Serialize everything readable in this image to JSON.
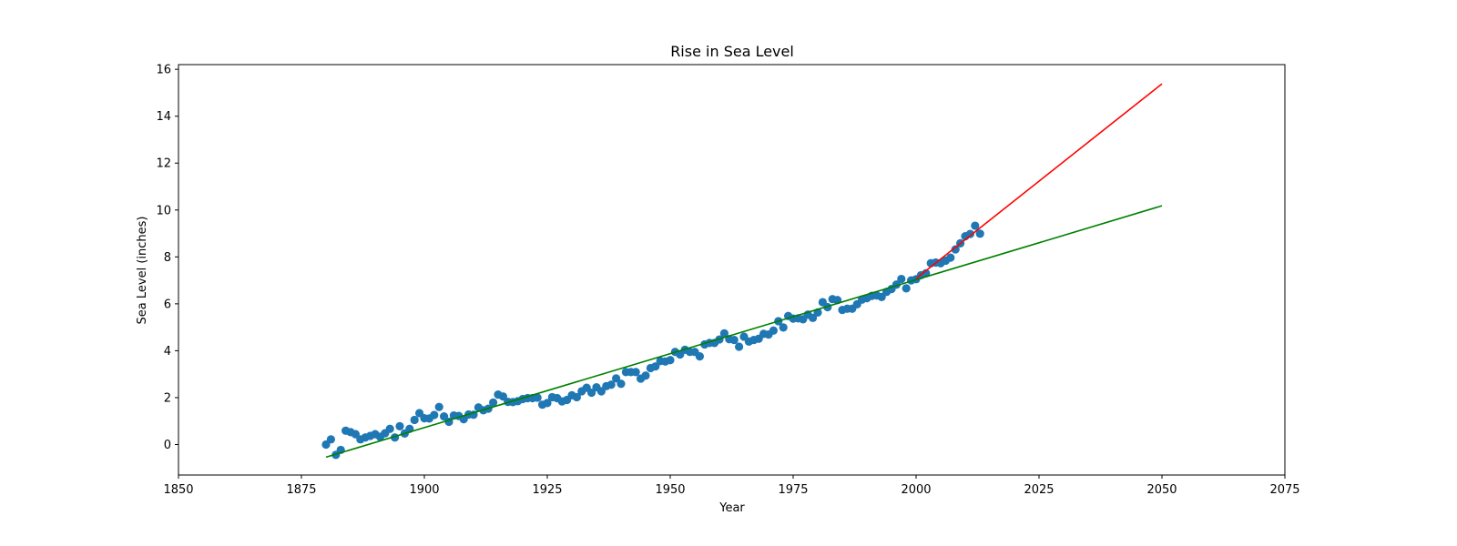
{
  "chart_data": {
    "type": "scatter",
    "title": "Rise in Sea Level",
    "xlabel": "Year",
    "ylabel": "Sea Level (inches)",
    "xlim": [
      1850,
      2075
    ],
    "ylim": [
      -1.3,
      16.2
    ],
    "x_ticks": [
      1850,
      1875,
      1900,
      1925,
      1950,
      1975,
      2000,
      2025,
      2050,
      2075
    ],
    "y_ticks": [
      0,
      2,
      4,
      6,
      8,
      10,
      12,
      14,
      16
    ],
    "grid": false,
    "scatter": {
      "color": "#1f77b4",
      "x": [
        1880,
        1881,
        1882,
        1883,
        1884,
        1885,
        1886,
        1887,
        1888,
        1889,
        1890,
        1891,
        1892,
        1893,
        1894,
        1895,
        1896,
        1897,
        1898,
        1899,
        1900,
        1901,
        1902,
        1903,
        1904,
        1905,
        1906,
        1907,
        1908,
        1909,
        1910,
        1911,
        1912,
        1913,
        1914,
        1915,
        1916,
        1917,
        1918,
        1919,
        1920,
        1921,
        1922,
        1923,
        1924,
        1925,
        1926,
        1927,
        1928,
        1929,
        1930,
        1931,
        1932,
        1933,
        1934,
        1935,
        1936,
        1937,
        1938,
        1939,
        1940,
        1941,
        1942,
        1943,
        1944,
        1945,
        1946,
        1947,
        1948,
        1949,
        1950,
        1951,
        1952,
        1953,
        1954,
        1955,
        1956,
        1957,
        1958,
        1959,
        1960,
        1961,
        1962,
        1963,
        1964,
        1965,
        1966,
        1967,
        1968,
        1969,
        1970,
        1971,
        1972,
        1973,
        1974,
        1975,
        1976,
        1977,
        1978,
        1979,
        1980,
        1981,
        1982,
        1983,
        1984,
        1985,
        1986,
        1987,
        1988,
        1989,
        1990,
        1991,
        1992,
        1993,
        1994,
        1995,
        1996,
        1997,
        1998,
        1999,
        2000,
        2001,
        2002,
        2003,
        2004,
        2005,
        2006,
        2007,
        2008,
        2009,
        2010,
        2011,
        2012,
        2013
      ],
      "y": [
        0.0,
        0.22,
        -0.44,
        -0.23,
        0.59,
        0.53,
        0.44,
        0.22,
        0.3,
        0.37,
        0.44,
        0.33,
        0.48,
        0.67,
        0.3,
        0.78,
        0.47,
        0.67,
        1.05,
        1.34,
        1.12,
        1.11,
        1.26,
        1.6,
        1.2,
        0.97,
        1.24,
        1.22,
        1.08,
        1.28,
        1.27,
        1.58,
        1.46,
        1.53,
        1.79,
        2.13,
        2.05,
        1.82,
        1.81,
        1.85,
        1.94,
        1.98,
        1.98,
        2.0,
        1.7,
        1.77,
        2.02,
        1.98,
        1.84,
        1.9,
        2.1,
        2.02,
        2.27,
        2.42,
        2.21,
        2.44,
        2.27,
        2.49,
        2.55,
        2.82,
        2.59,
        3.09,
        3.09,
        3.09,
        2.81,
        2.94,
        3.26,
        3.33,
        3.56,
        3.54,
        3.6,
        3.95,
        3.84,
        4.04,
        3.95,
        3.95,
        3.76,
        4.27,
        4.33,
        4.33,
        4.48,
        4.74,
        4.49,
        4.46,
        4.17,
        4.6,
        4.39,
        4.46,
        4.51,
        4.72,
        4.69,
        4.86,
        5.26,
        4.99,
        5.48,
        5.37,
        5.38,
        5.34,
        5.54,
        5.4,
        5.63,
        6.07,
        5.86,
        6.2,
        6.16,
        5.74,
        5.79,
        5.79,
        5.98,
        6.18,
        6.24,
        6.34,
        6.36,
        6.29,
        6.51,
        6.63,
        6.82,
        7.06,
        6.66,
        7.0,
        7.05,
        7.22,
        7.3,
        7.73,
        7.76,
        7.73,
        7.84,
        7.97,
        8.32,
        8.58,
        8.88,
        8.98,
        9.33,
        8.99
      ]
    },
    "series": [
      {
        "type": "line",
        "color": "#008000",
        "x": [
          1880,
          2050
        ],
        "y": [
          -0.54,
          10.18
        ]
      },
      {
        "type": "line",
        "color": "#ff0000",
        "x": [
          2000,
          2050
        ],
        "y": [
          7.08,
          15.38
        ]
      }
    ]
  }
}
